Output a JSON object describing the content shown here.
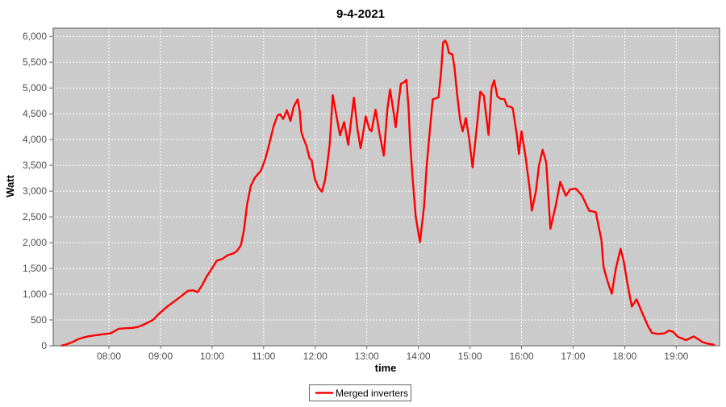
{
  "title": "9-4-2021",
  "colors": {
    "series": "#ff0000",
    "plot_bg": "#cbcbcb",
    "grid": "#ffffff",
    "plot_border": "#757575",
    "tick": "#666666",
    "tick_label": "#4d4d4d",
    "text": "#000000",
    "legend_bg": "#ffffff",
    "legend_border": "#666666"
  },
  "legend": {
    "label": "Merged inverters"
  },
  "chart_data": {
    "type": "line",
    "title": "9-4-2021",
    "xlabel": "time",
    "ylabel": "Watt",
    "xlim": [
      6.92,
      19.84
    ],
    "ylim": [
      0,
      6160
    ],
    "grid": true,
    "grid_style": "white dashed on light gray",
    "legend_position": "bottom-center",
    "x_ticks": [
      {
        "v": 8,
        "label": "08:00"
      },
      {
        "v": 9,
        "label": "09:00"
      },
      {
        "v": 10,
        "label": "10:00"
      },
      {
        "v": 11,
        "label": "11:00"
      },
      {
        "v": 12,
        "label": "12:00"
      },
      {
        "v": 13,
        "label": "13:00"
      },
      {
        "v": 14,
        "label": "14:00"
      },
      {
        "v": 15,
        "label": "15:00"
      },
      {
        "v": 16,
        "label": "16:00"
      },
      {
        "v": 17,
        "label": "17:00"
      },
      {
        "v": 18,
        "label": "18:00"
      },
      {
        "v": 19,
        "label": "19:00"
      }
    ],
    "y_ticks": [
      {
        "v": 0,
        "label": "0"
      },
      {
        "v": 500,
        "label": "500"
      },
      {
        "v": 1000,
        "label": "1,000"
      },
      {
        "v": 1500,
        "label": "1,500"
      },
      {
        "v": 2000,
        "label": "2,000"
      },
      {
        "v": 2500,
        "label": "2,500"
      },
      {
        "v": 3000,
        "label": "3,000"
      },
      {
        "v": 3500,
        "label": "3,500"
      },
      {
        "v": 4000,
        "label": "4,000"
      },
      {
        "v": 4500,
        "label": "4,500"
      },
      {
        "v": 5000,
        "label": "5,000"
      },
      {
        "v": 5500,
        "label": "5,500"
      },
      {
        "v": 6000,
        "label": "6,000"
      }
    ],
    "series": [
      {
        "name": "Merged inverters",
        "color": "#ff0000",
        "points": [
          [
            7.09,
            5
          ],
          [
            7.17,
            25
          ],
          [
            7.28,
            65
          ],
          [
            7.39,
            120
          ],
          [
            7.5,
            160
          ],
          [
            7.61,
            185
          ],
          [
            7.72,
            200
          ],
          [
            7.86,
            220
          ],
          [
            8.03,
            240
          ],
          [
            8.11,
            285
          ],
          [
            8.19,
            330
          ],
          [
            8.31,
            340
          ],
          [
            8.45,
            345
          ],
          [
            8.56,
            365
          ],
          [
            8.66,
            405
          ],
          [
            8.75,
            445
          ],
          [
            8.86,
            505
          ],
          [
            8.95,
            600
          ],
          [
            9.0,
            645
          ],
          [
            9.13,
            760
          ],
          [
            9.28,
            870
          ],
          [
            9.42,
            975
          ],
          [
            9.53,
            1065
          ],
          [
            9.63,
            1075
          ],
          [
            9.72,
            1040
          ],
          [
            9.81,
            1180
          ],
          [
            9.89,
            1335
          ],
          [
            9.98,
            1470
          ],
          [
            10.09,
            1650
          ],
          [
            10.2,
            1685
          ],
          [
            10.3,
            1755
          ],
          [
            10.41,
            1790
          ],
          [
            10.48,
            1835
          ],
          [
            10.56,
            1950
          ],
          [
            10.62,
            2250
          ],
          [
            10.68,
            2750
          ],
          [
            10.75,
            3100
          ],
          [
            10.83,
            3260
          ],
          [
            10.95,
            3400
          ],
          [
            11.03,
            3620
          ],
          [
            11.11,
            3920
          ],
          [
            11.19,
            4250
          ],
          [
            11.27,
            4470
          ],
          [
            11.32,
            4490
          ],
          [
            11.38,
            4400
          ],
          [
            11.45,
            4570
          ],
          [
            11.52,
            4360
          ],
          [
            11.58,
            4630
          ],
          [
            11.66,
            4780
          ],
          [
            11.7,
            4550
          ],
          [
            11.73,
            4150
          ],
          [
            11.78,
            4000
          ],
          [
            11.83,
            3880
          ],
          [
            11.89,
            3640
          ],
          [
            11.93,
            3600
          ],
          [
            11.99,
            3250
          ],
          [
            12.06,
            3070
          ],
          [
            12.13,
            2990
          ],
          [
            12.19,
            3210
          ],
          [
            12.23,
            3500
          ],
          [
            12.28,
            3900
          ],
          [
            12.34,
            4860
          ],
          [
            12.42,
            4420
          ],
          [
            12.48,
            4080
          ],
          [
            12.56,
            4340
          ],
          [
            12.64,
            3900
          ],
          [
            12.7,
            4400
          ],
          [
            12.75,
            4810
          ],
          [
            12.82,
            4200
          ],
          [
            12.88,
            3830
          ],
          [
            12.94,
            4200
          ],
          [
            12.98,
            4450
          ],
          [
            13.05,
            4200
          ],
          [
            13.09,
            4160
          ],
          [
            13.17,
            4580
          ],
          [
            13.25,
            4100
          ],
          [
            13.33,
            3690
          ],
          [
            13.4,
            4600
          ],
          [
            13.45,
            4970
          ],
          [
            13.51,
            4600
          ],
          [
            13.56,
            4240
          ],
          [
            13.66,
            5080
          ],
          [
            13.72,
            5110
          ],
          [
            13.77,
            5160
          ],
          [
            13.81,
            4600
          ],
          [
            13.84,
            3950
          ],
          [
            13.89,
            3230
          ],
          [
            13.95,
            2500
          ],
          [
            14.03,
            2010
          ],
          [
            14.11,
            2700
          ],
          [
            14.16,
            3480
          ],
          [
            14.23,
            4250
          ],
          [
            14.28,
            4780
          ],
          [
            14.34,
            4800
          ],
          [
            14.39,
            4820
          ],
          [
            14.44,
            5310
          ],
          [
            14.48,
            5880
          ],
          [
            14.52,
            5920
          ],
          [
            14.56,
            5840
          ],
          [
            14.59,
            5680
          ],
          [
            14.66,
            5650
          ],
          [
            14.7,
            5400
          ],
          [
            14.75,
            4890
          ],
          [
            14.81,
            4380
          ],
          [
            14.86,
            4160
          ],
          [
            14.92,
            4420
          ],
          [
            14.98,
            4050
          ],
          [
            15.05,
            3460
          ],
          [
            15.14,
            4300
          ],
          [
            15.2,
            4930
          ],
          [
            15.27,
            4850
          ],
          [
            15.36,
            4090
          ],
          [
            15.42,
            5000
          ],
          [
            15.47,
            5150
          ],
          [
            15.53,
            4840
          ],
          [
            15.59,
            4790
          ],
          [
            15.67,
            4780
          ],
          [
            15.72,
            4650
          ],
          [
            15.77,
            4640
          ],
          [
            15.83,
            4610
          ],
          [
            15.91,
            4090
          ],
          [
            15.95,
            3720
          ],
          [
            16.0,
            4160
          ],
          [
            16.08,
            3660
          ],
          [
            16.16,
            3040
          ],
          [
            16.2,
            2620
          ],
          [
            16.28,
            3000
          ],
          [
            16.34,
            3500
          ],
          [
            16.41,
            3800
          ],
          [
            16.48,
            3550
          ],
          [
            16.56,
            2270
          ],
          [
            16.66,
            2700
          ],
          [
            16.75,
            3180
          ],
          [
            16.86,
            2910
          ],
          [
            16.94,
            3030
          ],
          [
            17.05,
            3050
          ],
          [
            17.17,
            2920
          ],
          [
            17.31,
            2620
          ],
          [
            17.44,
            2590
          ],
          [
            17.47,
            2440
          ],
          [
            17.55,
            2050
          ],
          [
            17.59,
            1530
          ],
          [
            17.64,
            1350
          ],
          [
            17.7,
            1150
          ],
          [
            17.75,
            1010
          ],
          [
            17.83,
            1500
          ],
          [
            17.92,
            1880
          ],
          [
            17.98,
            1650
          ],
          [
            18.06,
            1170
          ],
          [
            18.14,
            760
          ],
          [
            18.23,
            900
          ],
          [
            18.34,
            640
          ],
          [
            18.45,
            390
          ],
          [
            18.53,
            250
          ],
          [
            18.64,
            230
          ],
          [
            18.77,
            240
          ],
          [
            18.86,
            295
          ],
          [
            18.94,
            270
          ],
          [
            19.03,
            175
          ],
          [
            19.19,
            110
          ],
          [
            19.34,
            180
          ],
          [
            19.44,
            120
          ],
          [
            19.5,
            75
          ],
          [
            19.59,
            45
          ],
          [
            19.67,
            30
          ],
          [
            19.73,
            20
          ]
        ]
      }
    ]
  }
}
